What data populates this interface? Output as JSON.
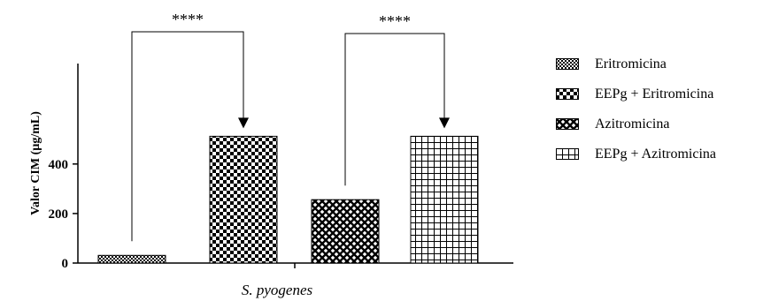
{
  "chart_data": {
    "type": "bar",
    "title": "",
    "xlabel": "S. pyogenes",
    "ylabel": "Valor CIM (µg/mL)",
    "ylim": [
      0,
      560
    ],
    "yticks": [
      "0",
      "200",
      "400"
    ],
    "grid": false,
    "legend_position": "right",
    "categories": [
      "Eritromicina",
      "EEPg + Eritromicina",
      "Azitromicina",
      "EEPg + Azitromicina"
    ],
    "values": [
      31,
      512,
      256,
      512
    ],
    "patterns": [
      "fine-checker",
      "checker",
      "diagonal-lattice",
      "grid"
    ],
    "legend": [
      "Eritromicina",
      "EEPg + Eritromicina",
      "Azitromicina",
      "EEPg + Azitromicina"
    ],
    "annotations": [
      {
        "from": "Eritromicina",
        "to": "EEPg + Eritromicina",
        "label": "****"
      },
      {
        "from": "Azitromicina",
        "to": "EEPg + Azitromicina",
        "label": "****"
      }
    ]
  }
}
